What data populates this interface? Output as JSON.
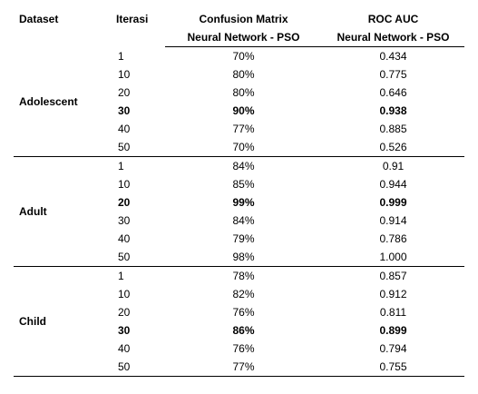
{
  "headers": {
    "dataset": "Dataset",
    "iterasi": "Iterasi",
    "confusion_matrix": "Confusion Matrix",
    "roc_auc": "ROC AUC",
    "cm_sub": "Neural Network  - PSO",
    "roc_sub": "Neural Network  - PSO"
  },
  "groups": [
    {
      "dataset": "Adolescent",
      "rows": [
        {
          "iter": "1",
          "cm": "70%",
          "roc": "0.434",
          "best": false
        },
        {
          "iter": "10",
          "cm": "80%",
          "roc": "0.775",
          "best": false
        },
        {
          "iter": "20",
          "cm": "80%",
          "roc": "0.646",
          "best": false
        },
        {
          "iter": "30",
          "cm": "90%",
          "roc": "0.938",
          "best": true
        },
        {
          "iter": "40",
          "cm": "77%",
          "roc": "0.885",
          "best": false
        },
        {
          "iter": "50",
          "cm": "70%",
          "roc": "0.526",
          "best": false
        }
      ]
    },
    {
      "dataset": "Adult",
      "rows": [
        {
          "iter": "1",
          "cm": "84%",
          "roc": "0.91",
          "best": false
        },
        {
          "iter": "10",
          "cm": "85%",
          "roc": "0.944",
          "best": false
        },
        {
          "iter": "20",
          "cm": "99%",
          "roc": "0.999",
          "best": true
        },
        {
          "iter": "30",
          "cm": "84%",
          "roc": "0.914",
          "best": false
        },
        {
          "iter": "40",
          "cm": "79%",
          "roc": "0.786",
          "best": false
        },
        {
          "iter": "50",
          "cm": "98%",
          "roc": "1.000",
          "best": false
        }
      ]
    },
    {
      "dataset": "Child",
      "rows": [
        {
          "iter": "1",
          "cm": "78%",
          "roc": "0.857",
          "best": false
        },
        {
          "iter": "10",
          "cm": "82%",
          "roc": "0.912",
          "best": false
        },
        {
          "iter": "20",
          "cm": "76%",
          "roc": "0.811",
          "best": false
        },
        {
          "iter": "30",
          "cm": "86%",
          "roc": "0.899",
          "best": true
        },
        {
          "iter": "40",
          "cm": "76%",
          "roc": "0.794",
          "best": false
        },
        {
          "iter": "50",
          "cm": "77%",
          "roc": "0.755",
          "best": false
        }
      ]
    }
  ]
}
